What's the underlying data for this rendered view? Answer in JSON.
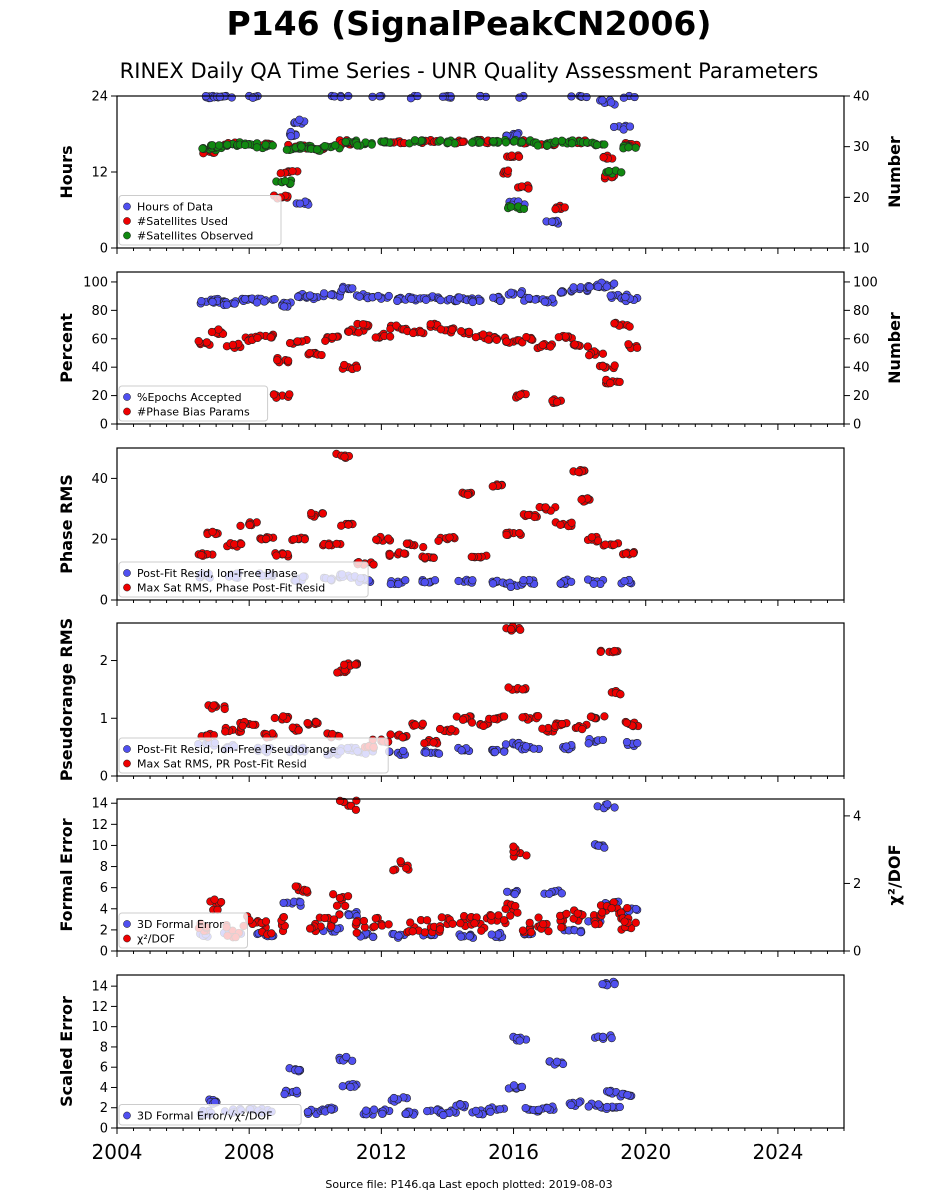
{
  "figure": {
    "title": "P146 (SignalPeakCN2006)",
    "subtitle": "RINEX Daily QA Time Series - UNR Quality Assessment Parameters",
    "footer": "Source file: P146.qa Last epoch plotted: 2019-08-03"
  },
  "colors": {
    "blue": "#5050f0",
    "red": "#ee0000",
    "green": "#118811",
    "edge": "#222222"
  },
  "x_axis": {
    "range": [
      2004,
      2026
    ],
    "ticks": [
      2004,
      2008,
      2012,
      2016,
      2020,
      2024
    ],
    "tick_labels": [
      "2004",
      "2008",
      "2012",
      "2016",
      "2020",
      "2024"
    ]
  },
  "chart_data": [
    {
      "type": "scatter",
      "ylabel": "Hours",
      "ylabel_right": "Number",
      "ylim": [
        0,
        24
      ],
      "yticks": [
        0,
        12,
        24
      ],
      "ytick_labels": [
        "0",
        "12",
        "24"
      ],
      "ylim_right": [
        10,
        40
      ],
      "yticks_right": [
        10,
        20,
        30,
        40
      ],
      "ytick_labels_right": [
        "10",
        "20",
        "30",
        "40"
      ],
      "legend": "lower-left",
      "series": [
        {
          "name": "Hours of Data",
          "color": "blue",
          "axis": "left",
          "x": [
            2006.7,
            2006.9,
            2007.3,
            2008.0,
            2009.3,
            2009.5,
            2009.7,
            2010.5,
            2011.0,
            2012.0,
            2013.0,
            2014.0,
            2015.0,
            2016.0,
            2016.1,
            2016.3,
            2017.2,
            2018.0,
            2018.8,
            2019.3,
            2019.5
          ],
          "y": [
            23.8,
            24.0,
            24.0,
            24.0,
            18.0,
            20.0,
            7.0,
            24.0,
            24.0,
            24.0,
            24.0,
            24.0,
            24.0,
            18.0,
            7.0,
            24.0,
            4.2,
            24.0,
            23.0,
            19.0,
            24.0
          ]
        },
        {
          "name": "#Satellites Used",
          "color": "red",
          "axis": "right",
          "x": [
            2006.8,
            2007.5,
            2008.5,
            2009.0,
            2009.2,
            2009.4,
            2010.0,
            2010.8,
            2011.0,
            2012.5,
            2013.5,
            2014.5,
            2015.0,
            2015.8,
            2016.0,
            2016.2,
            2016.5,
            2017.0,
            2017.3,
            2018.0,
            2018.8,
            2019.0,
            2019.5
          ],
          "y": [
            29.0,
            30.5,
            30.5,
            20.0,
            25.0,
            30.0,
            29.5,
            30.5,
            31.0,
            31.0,
            31.0,
            31.0,
            31.0,
            25.0,
            28.0,
            22.0,
            31.0,
            30.5,
            18.0,
            31.0,
            28.0,
            24.0,
            30.5
          ]
        },
        {
          "name": "#Satellites Observed",
          "color": "green",
          "axis": "right",
          "x": [
            2006.8,
            2007.0,
            2007.5,
            2008.0,
            2008.5,
            2009.0,
            2009.3,
            2009.6,
            2010.0,
            2010.5,
            2011.0,
            2011.5,
            2012.0,
            2013.0,
            2014.0,
            2015.0,
            2015.5,
            2016.0,
            2016.1,
            2016.5,
            2017.0,
            2017.5,
            2018.0,
            2018.5,
            2019.0,
            2019.5
          ],
          "y": [
            29.5,
            30.0,
            30.5,
            30.5,
            30.0,
            23.0,
            29.5,
            30.0,
            29.5,
            30.0,
            31.0,
            30.5,
            31.0,
            31.0,
            31.0,
            31.0,
            31.0,
            31.0,
            18.0,
            31.0,
            30.5,
            31.0,
            31.0,
            30.5,
            25.0,
            30.0
          ]
        }
      ]
    },
    {
      "type": "scatter",
      "ylabel": "Percent",
      "ylabel_right": "Number",
      "ylim": [
        0,
        107
      ],
      "yticks": [
        0,
        20,
        40,
        60,
        80,
        100
      ],
      "ytick_labels": [
        "0",
        "20",
        "40",
        "60",
        "80",
        "100"
      ],
      "ylim_right": [
        0,
        107
      ],
      "yticks_right": [
        0,
        20,
        40,
        60,
        80,
        100
      ],
      "ytick_labels_right": [
        "0",
        "20",
        "40",
        "60",
        "80",
        "100"
      ],
      "legend": "lower-left",
      "series": [
        {
          "name": "%Epochs Accepted",
          "color": "blue",
          "axis": "left",
          "x": [
            2006.7,
            2007.0,
            2007.5,
            2008.0,
            2008.5,
            2009.0,
            2009.5,
            2010.0,
            2010.5,
            2011.0,
            2011.5,
            2012.0,
            2012.5,
            2013.0,
            2013.5,
            2014.0,
            2014.5,
            2015.0,
            2015.5,
            2016.0,
            2016.5,
            2017.0,
            2017.5,
            2018.0,
            2018.5,
            2018.8,
            2019.2,
            2019.5
          ],
          "y": [
            86,
            87,
            85,
            88,
            87,
            84,
            90,
            89,
            91,
            95,
            90,
            89,
            88,
            88,
            89,
            87,
            88,
            87,
            88,
            92,
            88,
            87,
            93,
            95,
            97,
            98,
            90,
            88
          ]
        },
        {
          "name": "#Phase Bias Params",
          "color": "red",
          "axis": "right",
          "x": [
            2006.7,
            2007.0,
            2007.5,
            2008.0,
            2008.5,
            2009.0,
            2009.1,
            2009.5,
            2010.0,
            2010.5,
            2011.0,
            2011.2,
            2011.5,
            2012.0,
            2012.5,
            2013.0,
            2013.5,
            2014.0,
            2014.5,
            2015.0,
            2015.5,
            2016.0,
            2016.1,
            2016.5,
            2017.0,
            2017.3,
            2017.5,
            2018.0,
            2018.5,
            2018.8,
            2019.0,
            2019.3,
            2019.5
          ],
          "y": [
            57,
            65,
            55,
            60,
            62,
            20,
            45,
            58,
            50,
            60,
            40,
            65,
            70,
            62,
            68,
            65,
            70,
            66,
            64,
            62,
            60,
            58,
            20,
            60,
            55,
            16,
            62,
            55,
            50,
            40,
            30,
            70,
            55
          ]
        }
      ]
    },
    {
      "type": "scatter",
      "ylabel": "Phase RMS",
      "ylim": [
        0,
        50
      ],
      "yticks": [
        0,
        20,
        40
      ],
      "ytick_labels": [
        "0",
        "20",
        "40"
      ],
      "legend": "lower-left",
      "series": [
        {
          "name": "Post-Fit Resid, Ion-Free Phase",
          "color": "blue",
          "axis": "left",
          "x": [
            2006.7,
            2007.5,
            2008.5,
            2009.5,
            2010.5,
            2011.0,
            2011.5,
            2012.5,
            2013.5,
            2014.5,
            2015.5,
            2016.0,
            2016.5,
            2017.5,
            2018.5,
            2019.5
          ],
          "y": [
            8,
            8,
            8,
            7,
            7,
            8,
            6.5,
            6,
            6,
            6,
            6,
            5,
            6,
            6,
            6,
            6
          ]
        },
        {
          "name": "Max Sat RMS, Phase Post-Fit Resid",
          "color": "red",
          "axis": "left",
          "x": [
            2006.7,
            2007.0,
            2007.5,
            2008.0,
            2008.5,
            2009.0,
            2009.5,
            2010.0,
            2010.5,
            2010.9,
            2011.0,
            2011.5,
            2012.0,
            2012.5,
            2013.0,
            2013.5,
            2014.0,
            2014.5,
            2015.0,
            2015.5,
            2016.0,
            2016.5,
            2017.0,
            2017.5,
            2018.0,
            2018.3,
            2018.5,
            2019.0,
            2019.5
          ],
          "y": [
            15,
            22,
            18,
            25,
            20,
            15,
            20,
            28,
            18,
            47.5,
            25,
            12,
            20,
            15,
            18,
            14,
            20,
            35,
            14,
            38,
            22,
            28,
            30,
            25,
            42,
            33,
            20,
            18,
            15
          ]
        }
      ]
    },
    {
      "type": "scatter",
      "ylabel": "Pseudorange RMS",
      "ylim": [
        0,
        2.65
      ],
      "yticks": [
        0,
        1,
        2
      ],
      "ytick_labels": [
        "0",
        "1",
        "2"
      ],
      "legend": "lower-left",
      "series": [
        {
          "name": "Post-Fit Resid, Ion-Free Pseudorange",
          "color": "blue",
          "axis": "left",
          "x": [
            2006.7,
            2007.5,
            2008.5,
            2009.5,
            2010.5,
            2011.0,
            2011.5,
            2012.5,
            2013.5,
            2014.5,
            2015.5,
            2016.0,
            2016.5,
            2017.5,
            2018.5,
            2019.5
          ],
          "y": [
            0.55,
            0.5,
            0.45,
            0.45,
            0.4,
            0.45,
            0.4,
            0.4,
            0.4,
            0.45,
            0.45,
            0.55,
            0.5,
            0.5,
            0.6,
            0.55
          ]
        },
        {
          "name": "Max Sat RMS, PR Post-Fit Resid",
          "color": "red",
          "axis": "left",
          "x": [
            2006.7,
            2007.0,
            2007.5,
            2008.0,
            2008.5,
            2009.0,
            2009.5,
            2010.0,
            2010.5,
            2010.9,
            2011.0,
            2011.5,
            2012.0,
            2012.5,
            2013.0,
            2013.5,
            2014.0,
            2014.5,
            2015.0,
            2015.5,
            2016.0,
            2016.1,
            2016.5,
            2017.0,
            2017.5,
            2018.0,
            2018.5,
            2018.9,
            2019.0,
            2019.5
          ],
          "y": [
            0.7,
            1.2,
            0.8,
            0.9,
            0.7,
            1.0,
            0.8,
            0.9,
            0.7,
            1.8,
            1.95,
            0.5,
            0.6,
            0.7,
            0.9,
            0.6,
            0.8,
            1.0,
            0.9,
            1.0,
            2.55,
            1.5,
            1.0,
            0.8,
            0.9,
            0.85,
            1.0,
            2.15,
            1.45,
            0.9
          ]
        }
      ]
    },
    {
      "type": "scatter",
      "ylabel": "Formal Error",
      "ylabel_right": "χ²/DOF",
      "ylim": [
        0,
        14.4
      ],
      "yticks": [
        0,
        2,
        4,
        6,
        8,
        10,
        12,
        14
      ],
      "ytick_labels": [
        "0",
        "2",
        "4",
        "6",
        "8",
        "10",
        "12",
        "14"
      ],
      "ylim_right": [
        0,
        4.5
      ],
      "yticks_right": [
        0,
        2,
        4
      ],
      "ytick_labels_right": [
        "0",
        "2",
        "4"
      ],
      "legend": "lower-left",
      "series": [
        {
          "name": "3D Formal Error",
          "color": "blue",
          "axis": "left",
          "x": [
            2006.7,
            2007.5,
            2008.5,
            2009.3,
            2010.5,
            2011.0,
            2011.5,
            2012.5,
            2013.5,
            2014.5,
            2015.5,
            2016.0,
            2016.5,
            2017.2,
            2017.8,
            2018.5,
            2018.7,
            2018.8,
            2019.0,
            2019.5
          ],
          "y": [
            1.5,
            1.8,
            1.5,
            4.5,
            2.0,
            3.5,
            1.5,
            1.4,
            1.5,
            1.4,
            1.5,
            5.5,
            1.6,
            5.6,
            2.0,
            3.0,
            10.0,
            13.7,
            4.5,
            3.8
          ]
        },
        {
          "name": "χ²/DOF",
          "color": "red",
          "axis": "right",
          "x": [
            2006.7,
            2007.0,
            2007.5,
            2008.0,
            2008.5,
            2009.0,
            2009.5,
            2010.0,
            2010.5,
            2010.8,
            2011.0,
            2011.5,
            2012.0,
            2012.6,
            2013.0,
            2013.5,
            2014.0,
            2014.5,
            2015.0,
            2015.5,
            2016.0,
            2016.2,
            2016.5,
            2017.0,
            2017.5,
            2018.0,
            2018.5,
            2018.9,
            2019.2,
            2019.5
          ],
          "y": [
            0.6,
            1.4,
            0.6,
            0.9,
            0.7,
            0.8,
            1.8,
            0.8,
            0.9,
            1.5,
            4.3,
            0.7,
            0.8,
            2.6,
            0.7,
            0.7,
            0.8,
            0.9,
            0.8,
            0.9,
            1.2,
            2.9,
            0.7,
            0.8,
            0.9,
            1.0,
            0.9,
            1.3,
            1.1,
            0.7
          ]
        }
      ]
    },
    {
      "type": "scatter",
      "ylabel": "Scaled Error",
      "ylim": [
        0,
        15.1
      ],
      "yticks": [
        0,
        2,
        4,
        6,
        8,
        10,
        12,
        14
      ],
      "ytick_labels": [
        "0",
        "2",
        "4",
        "6",
        "8",
        "10",
        "12",
        "14"
      ],
      "legend": "lower-left",
      "series": [
        {
          "name": "3D Formal Error/√χ²/DOF",
          "color": "blue",
          "axis": "left",
          "x": [
            2006.7,
            2007.0,
            2007.5,
            2008.0,
            2008.5,
            2009.2,
            2009.4,
            2010.0,
            2010.5,
            2010.9,
            2011.0,
            2011.5,
            2012.0,
            2012.5,
            2013.0,
            2013.5,
            2014.0,
            2014.5,
            2015.0,
            2015.5,
            2016.0,
            2016.2,
            2016.5,
            2017.0,
            2017.3,
            2017.8,
            2018.5,
            2018.7,
            2018.8,
            2018.9,
            2019.0,
            2019.5
          ],
          "y": [
            1.5,
            2.6,
            1.6,
            1.8,
            1.7,
            3.5,
            5.8,
            1.6,
            1.8,
            6.8,
            4.2,
            1.5,
            1.6,
            2.8,
            1.5,
            1.7,
            1.5,
            2.2,
            1.5,
            1.8,
            4.0,
            8.8,
            1.8,
            2.0,
            6.4,
            2.4,
            2.2,
            9.0,
            14.3,
            3.5,
            2.0,
            3.2
          ]
        }
      ]
    }
  ]
}
